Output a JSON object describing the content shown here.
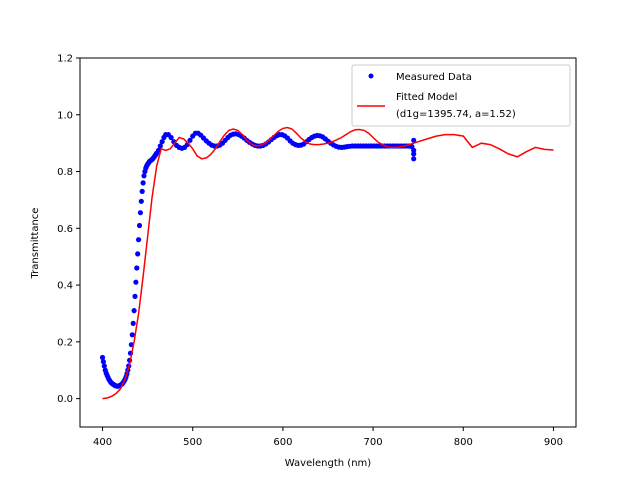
{
  "chart_data": {
    "type": "scatter",
    "xlabel": "Wavelength (nm)",
    "ylabel": "Transmittance",
    "xlim": [
      375,
      925
    ],
    "ylim": [
      -0.1,
      1.2
    ],
    "xticks": [
      400,
      500,
      600,
      700,
      800,
      900
    ],
    "yticks": [
      0.0,
      0.2,
      0.4,
      0.6,
      0.8,
      1.0,
      1.2
    ],
    "grid": false,
    "legend_position": "top-right",
    "series": [
      {
        "name": "Measured Data",
        "kind": "scatter",
        "color": "#0000ff",
        "x": [
          400,
          401,
          402,
          403,
          404,
          405,
          406,
          407,
          408,
          409,
          410,
          411,
          412,
          413,
          414,
          415,
          416,
          417,
          418,
          419,
          420,
          421,
          422,
          423,
          424,
          425,
          426,
          427,
          428,
          429,
          430,
          431,
          432,
          433,
          434,
          435,
          436,
          437,
          438,
          439,
          440,
          441,
          442,
          443,
          444,
          445,
          446,
          447,
          448,
          449,
          450,
          451,
          452,
          453,
          454,
          455,
          456,
          457,
          458,
          459,
          460,
          462,
          464,
          466,
          468,
          470,
          473,
          476,
          479,
          482,
          485,
          488,
          491,
          494,
          497,
          500,
          503,
          506,
          509,
          512,
          515,
          518,
          521,
          524,
          527,
          530,
          533,
          536,
          539,
          542,
          545,
          548,
          551,
          554,
          557,
          560,
          563,
          566,
          569,
          572,
          575,
          578,
          581,
          584,
          587,
          590,
          593,
          596,
          599,
          602,
          605,
          608,
          611,
          614,
          617,
          620,
          623,
          626,
          629,
          632,
          635,
          638,
          641,
          644,
          647,
          650,
          653,
          656,
          659,
          662,
          665,
          668,
          671,
          674,
          677,
          680,
          683,
          686,
          689,
          692,
          695,
          698,
          701,
          704,
          707,
          710,
          713,
          716,
          719,
          722,
          725,
          728,
          731,
          734,
          737,
          740,
          743,
          745,
          745,
          745,
          745
        ],
        "y": [
          0.145,
          0.13,
          0.115,
          0.1,
          0.09,
          0.082,
          0.075,
          0.068,
          0.063,
          0.058,
          0.055,
          0.052,
          0.05,
          0.048,
          0.046,
          0.045,
          0.044,
          0.044,
          0.045,
          0.046,
          0.048,
          0.05,
          0.053,
          0.057,
          0.062,
          0.068,
          0.076,
          0.087,
          0.1,
          0.115,
          0.135,
          0.16,
          0.19,
          0.225,
          0.265,
          0.31,
          0.36,
          0.41,
          0.46,
          0.51,
          0.56,
          0.61,
          0.655,
          0.695,
          0.73,
          0.76,
          0.785,
          0.8,
          0.812,
          0.82,
          0.825,
          0.83,
          0.835,
          0.838,
          0.84,
          0.843,
          0.846,
          0.85,
          0.855,
          0.86,
          0.865,
          0.875,
          0.89,
          0.905,
          0.92,
          0.93,
          0.93,
          0.92,
          0.905,
          0.892,
          0.885,
          0.882,
          0.885,
          0.895,
          0.91,
          0.925,
          0.935,
          0.935,
          0.928,
          0.918,
          0.908,
          0.9,
          0.893,
          0.89,
          0.89,
          0.893,
          0.9,
          0.91,
          0.92,
          0.928,
          0.932,
          0.933,
          0.93,
          0.925,
          0.918,
          0.91,
          0.903,
          0.897,
          0.892,
          0.89,
          0.89,
          0.892,
          0.897,
          0.904,
          0.912,
          0.92,
          0.926,
          0.93,
          0.93,
          0.926,
          0.918,
          0.908,
          0.9,
          0.895,
          0.892,
          0.893,
          0.897,
          0.905,
          0.913,
          0.92,
          0.925,
          0.927,
          0.926,
          0.922,
          0.915,
          0.907,
          0.9,
          0.894,
          0.889,
          0.886,
          0.885,
          0.886,
          0.888,
          0.889,
          0.89,
          0.89,
          0.89,
          0.89,
          0.89,
          0.89,
          0.89,
          0.89,
          0.89,
          0.89,
          0.89,
          0.89,
          0.89,
          0.89,
          0.89,
          0.89,
          0.89,
          0.89,
          0.89,
          0.89,
          0.89,
          0.89,
          0.888,
          0.91,
          0.875,
          0.862,
          0.845
        ],
        "marker": "o"
      },
      {
        "name": "Fitted Model\n(d1g=1395.74, a=1.52)",
        "kind": "line",
        "color": "#ff0000",
        "x": [
          400,
          405,
          410,
          415,
          420,
          425,
          430,
          435,
          440,
          445,
          450,
          455,
          460,
          465,
          470,
          475,
          480,
          485,
          490,
          495,
          500,
          505,
          510,
          515,
          520,
          525,
          530,
          535,
          540,
          545,
          550,
          555,
          560,
          565,
          570,
          575,
          580,
          585,
          590,
          595,
          600,
          605,
          610,
          615,
          620,
          625,
          630,
          635,
          640,
          645,
          650,
          655,
          660,
          665,
          670,
          675,
          680,
          685,
          690,
          695,
          700,
          705,
          710,
          715,
          720,
          725,
          730,
          735,
          740,
          745,
          750,
          760,
          770,
          780,
          790,
          800,
          810,
          820,
          830,
          840,
          850,
          860,
          870,
          880,
          890,
          900
        ],
        "y": [
          0.0,
          0.002,
          0.008,
          0.018,
          0.035,
          0.07,
          0.12,
          0.2,
          0.3,
          0.43,
          0.57,
          0.71,
          0.82,
          0.88,
          0.875,
          0.88,
          0.9,
          0.92,
          0.915,
          0.9,
          0.88,
          0.855,
          0.845,
          0.848,
          0.86,
          0.88,
          0.905,
          0.928,
          0.945,
          0.95,
          0.945,
          0.93,
          0.91,
          0.897,
          0.89,
          0.892,
          0.9,
          0.912,
          0.927,
          0.942,
          0.952,
          0.955,
          0.95,
          0.935,
          0.918,
          0.905,
          0.897,
          0.895,
          0.895,
          0.897,
          0.9,
          0.905,
          0.912,
          0.92,
          0.93,
          0.94,
          0.947,
          0.948,
          0.945,
          0.935,
          0.92,
          0.905,
          0.895,
          0.888,
          0.885,
          0.885,
          0.887,
          0.89,
          0.895,
          0.9,
          0.905,
          0.915,
          0.925,
          0.93,
          0.93,
          0.925,
          0.885,
          0.9,
          0.895,
          0.88,
          0.862,
          0.852,
          0.87,
          0.885,
          0.878,
          0.876
        ]
      }
    ]
  }
}
